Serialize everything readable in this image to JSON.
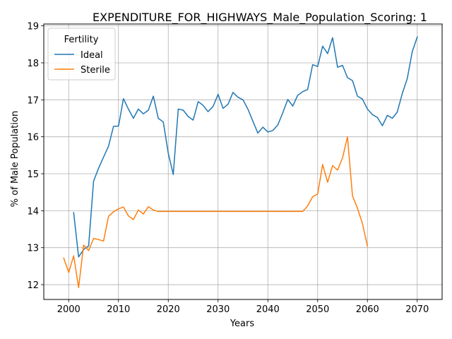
{
  "chart_data": {
    "type": "line",
    "title": "EXPENDITURE_FOR_HIGHWAYS_Male_Population_Scoring: 1",
    "xlabel": "Years",
    "ylabel": "% of Male Population",
    "xlim": [
      1995,
      2075
    ],
    "ylim": [
      11.6,
      19.05
    ],
    "xticks": [
      2000,
      2010,
      2020,
      2030,
      2040,
      2050,
      2060,
      2070
    ],
    "yticks": [
      12,
      13,
      14,
      15,
      16,
      17,
      18,
      19
    ],
    "grid": true,
    "legend": {
      "title": "Fertility",
      "placement": "top-left"
    },
    "series": [
      {
        "name": "Ideal",
        "color": "#1f77b4",
        "x": [
          2001,
          2002,
          2003,
          2004,
          2005,
          2006,
          2007,
          2008,
          2009,
          2010,
          2011,
          2012,
          2013,
          2014,
          2015,
          2016,
          2017,
          2018,
          2019,
          2020,
          2021,
          2022,
          2023,
          2024,
          2025,
          2026,
          2027,
          2028,
          2029,
          2030,
          2031,
          2032,
          2033,
          2034,
          2035,
          2036,
          2037,
          2038,
          2039,
          2040,
          2041,
          2042,
          2043,
          2044,
          2045,
          2046,
          2047,
          2048,
          2049,
          2050,
          2051,
          2052,
          2053,
          2054,
          2055,
          2056,
          2057,
          2058,
          2059,
          2060,
          2061,
          2062,
          2063,
          2064,
          2065,
          2066,
          2067,
          2068,
          2069,
          2070
        ],
        "values": [
          13.95,
          12.75,
          12.95,
          13.05,
          14.8,
          15.15,
          15.45,
          15.75,
          16.28,
          16.29,
          17.03,
          16.75,
          16.5,
          16.75,
          16.62,
          16.72,
          17.1,
          16.5,
          16.4,
          15.55,
          14.98,
          16.75,
          16.72,
          16.55,
          16.45,
          16.95,
          16.85,
          16.68,
          16.82,
          17.15,
          16.77,
          16.88,
          17.2,
          17.07,
          17.0,
          16.75,
          16.42,
          16.1,
          16.26,
          16.13,
          16.17,
          16.32,
          16.65,
          17.01,
          16.83,
          17.12,
          17.22,
          17.28,
          17.95,
          17.9,
          18.45,
          18.25,
          18.68,
          17.88,
          17.93,
          17.6,
          17.52,
          17.1,
          17.02,
          16.75,
          16.6,
          16.52,
          16.3,
          16.58,
          16.5,
          16.67,
          17.17,
          17.57,
          18.3,
          18.7
        ]
      },
      {
        "name": "Sterile",
        "color": "#ff7f0e",
        "x": [
          1999,
          2000,
          2001,
          2002,
          2003,
          2004,
          2005,
          2006,
          2007,
          2008,
          2009,
          2010,
          2011,
          2012,
          2013,
          2014,
          2015,
          2016,
          2017,
          2018,
          2019,
          2020,
          2025,
          2030,
          2035,
          2040,
          2045,
          2047,
          2048,
          2049,
          2050,
          2051,
          2052,
          2053,
          2054,
          2055,
          2056,
          2057,
          2058,
          2059,
          2060
        ],
        "values": [
          12.72,
          12.33,
          12.78,
          11.92,
          13.07,
          12.92,
          13.25,
          13.22,
          13.18,
          13.85,
          13.97,
          14.05,
          14.1,
          13.86,
          13.76,
          14.02,
          13.91,
          14.11,
          14.02,
          13.98,
          13.98,
          13.98,
          13.98,
          13.98,
          13.98,
          13.98,
          13.98,
          13.98,
          14.13,
          14.38,
          14.45,
          15.25,
          14.77,
          15.22,
          15.1,
          15.43,
          16.0,
          14.4,
          14.07,
          13.65,
          13.04
        ]
      }
    ]
  }
}
